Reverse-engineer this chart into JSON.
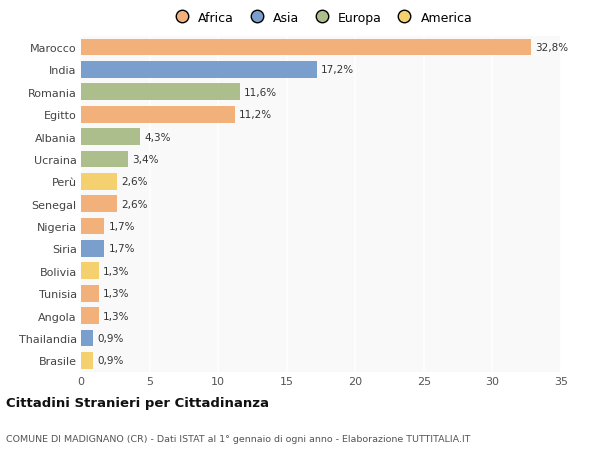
{
  "countries": [
    "Marocco",
    "India",
    "Romania",
    "Egitto",
    "Albania",
    "Ucraina",
    "Perù",
    "Senegal",
    "Nigeria",
    "Siria",
    "Bolivia",
    "Tunisia",
    "Angola",
    "Thailandia",
    "Brasile"
  ],
  "values": [
    32.8,
    17.2,
    11.6,
    11.2,
    4.3,
    3.4,
    2.6,
    2.6,
    1.7,
    1.7,
    1.3,
    1.3,
    1.3,
    0.9,
    0.9
  ],
  "labels": [
    "32,8%",
    "17,2%",
    "11,6%",
    "11,2%",
    "4,3%",
    "3,4%",
    "2,6%",
    "2,6%",
    "1,7%",
    "1,7%",
    "1,3%",
    "1,3%",
    "1,3%",
    "0,9%",
    "0,9%"
  ],
  "continents": [
    "Africa",
    "Asia",
    "Europa",
    "Africa",
    "Europa",
    "Europa",
    "America",
    "Africa",
    "Africa",
    "Asia",
    "America",
    "Africa",
    "Africa",
    "Asia",
    "America"
  ],
  "continent_colors": {
    "Africa": "#F2B07B",
    "Asia": "#7B9FCC",
    "Europa": "#ABBE8B",
    "America": "#F5D06E"
  },
  "legend_order": [
    "Africa",
    "Asia",
    "Europa",
    "America"
  ],
  "title": "Cittadini Stranieri per Cittadinanza",
  "subtitle": "COMUNE DI MADIGNANO (CR) - Dati ISTAT al 1° gennaio di ogni anno - Elaborazione TUTTITALIA.IT",
  "xlim": [
    0,
    35
  ],
  "xticks": [
    0,
    5,
    10,
    15,
    20,
    25,
    30,
    35
  ],
  "background_color": "#ffffff",
  "plot_bg_color": "#f9f9f9"
}
